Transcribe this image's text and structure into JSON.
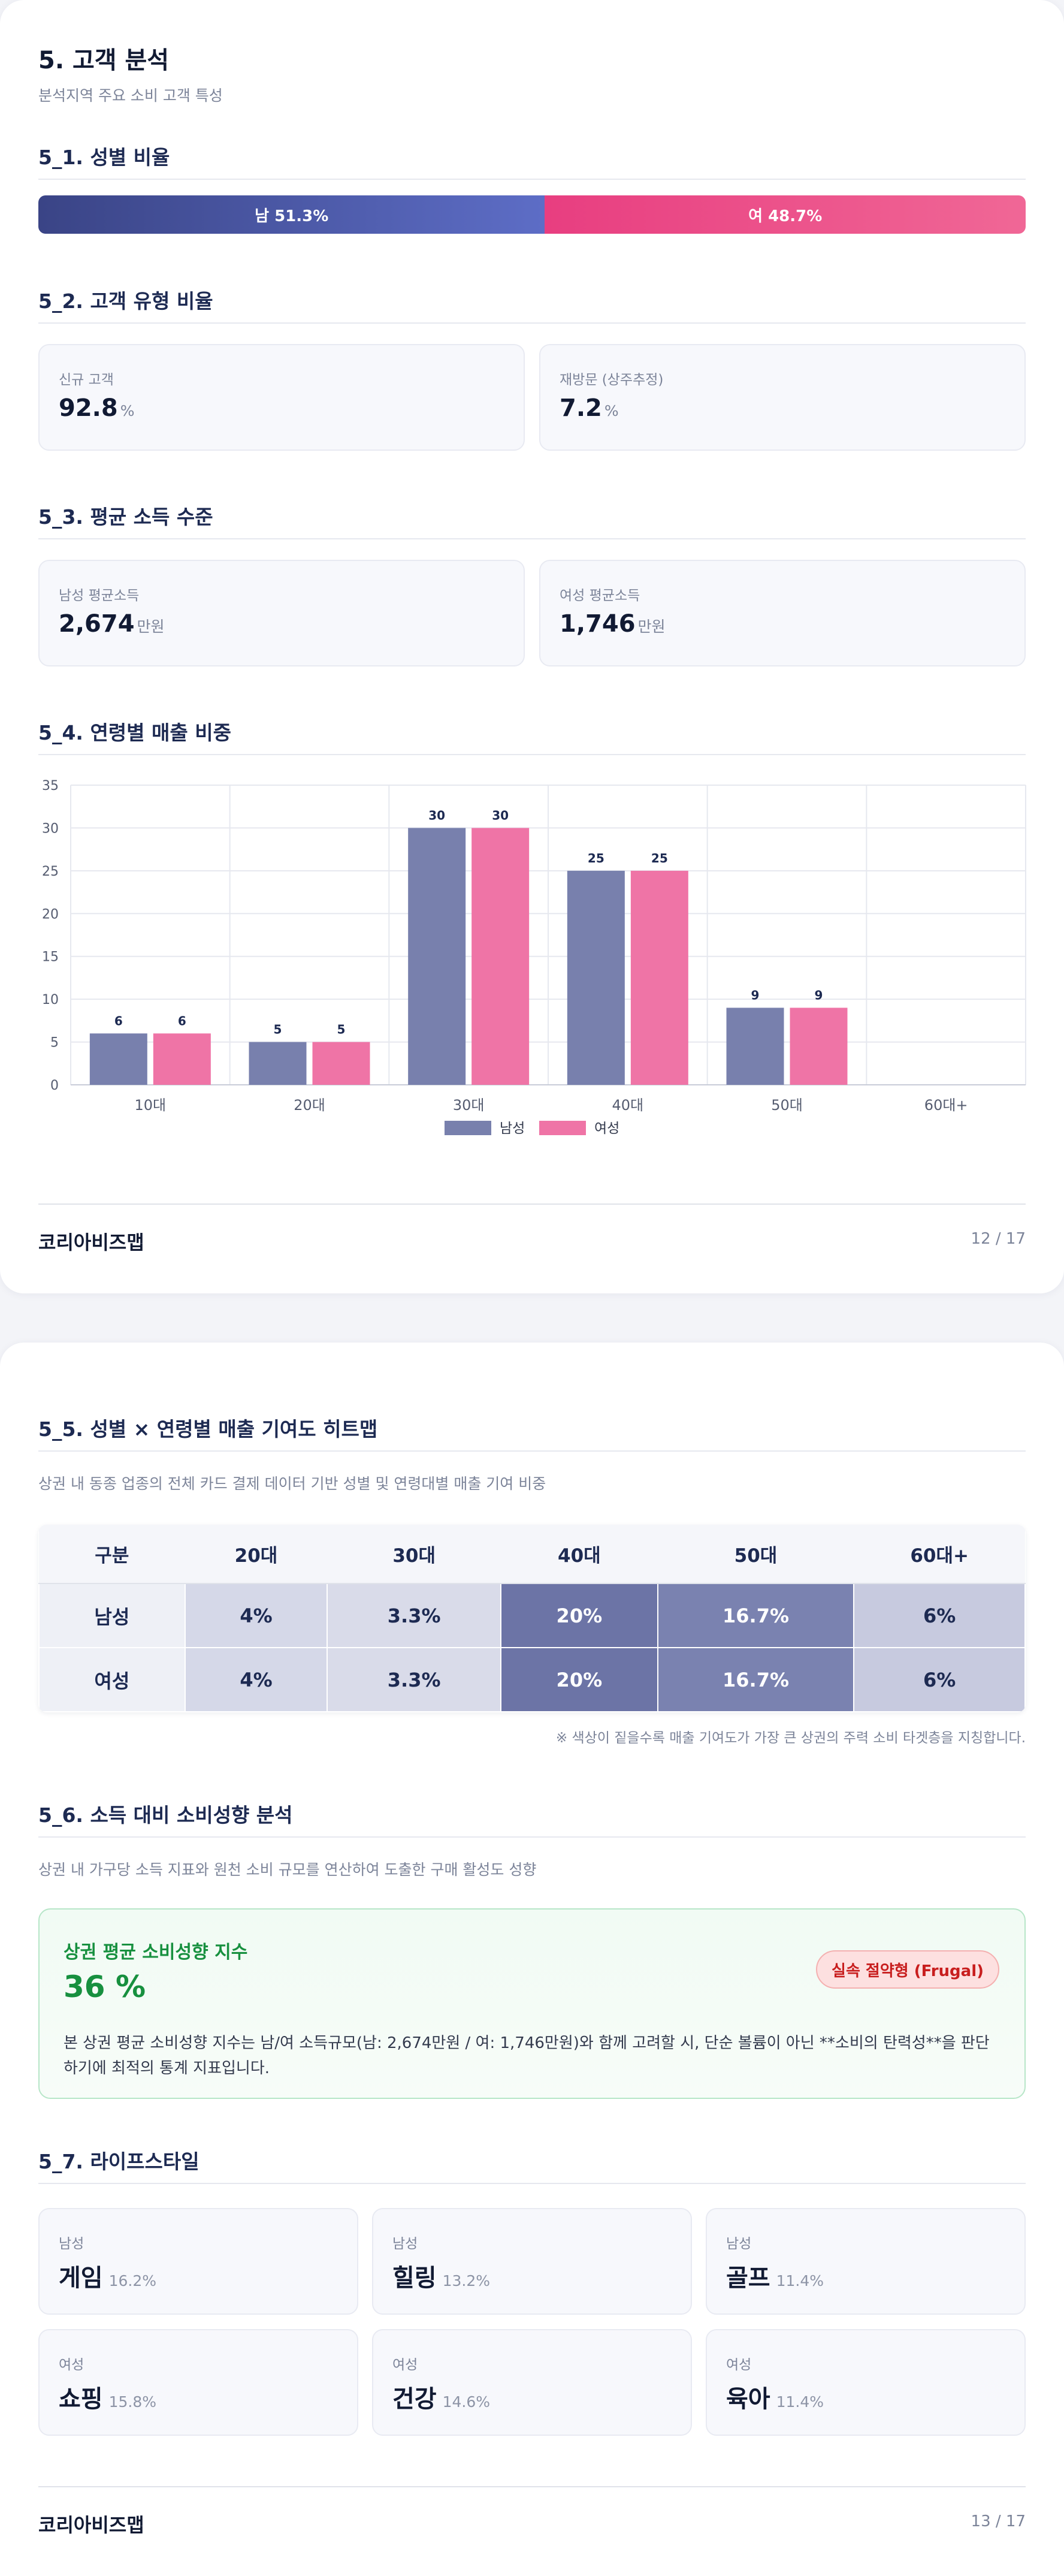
{
  "page1": {
    "title": "5. 고객 분석",
    "subtitle": "분석지역 주요 소비 고객 특성",
    "gender": {
      "heading": "5_1. 성별 비율",
      "male_label": "남 51.3%",
      "female_label": "여 48.7%",
      "male_pct": 51.3,
      "female_pct": 48.7
    },
    "customer_type": {
      "heading": "5_2. 고객 유형 비율",
      "new_label": "신규 고객",
      "new_value": "92.8",
      "new_unit": "%",
      "return_label": "재방문 (상주추정)",
      "return_value": "7.2",
      "return_unit": "%"
    },
    "income": {
      "heading": "5_3. 평균 소득 수준",
      "male_label": "남성 평균소득",
      "male_value": "2,674",
      "male_unit": "만원",
      "female_label": "여성 평균소득",
      "female_value": "1,746",
      "female_unit": "만원"
    },
    "age_sales": {
      "heading": "5_4. 연령별 매출 비중"
    },
    "footer": {
      "brand": "코리아비즈맵",
      "page": "12 / 17"
    }
  },
  "chart_data": {
    "type": "bar",
    "categories": [
      "10대",
      "20대",
      "30대",
      "40대",
      "50대",
      "60대+"
    ],
    "series": [
      {
        "name": "남성",
        "values": [
          6,
          5,
          30,
          25,
          9,
          0
        ],
        "color": "#7880ad"
      },
      {
        "name": "여성",
        "values": [
          6,
          5,
          30,
          25,
          9,
          0
        ],
        "color": "#ef74a6"
      }
    ],
    "ylim": [
      0,
      35
    ],
    "yticks": [
      0,
      5,
      10,
      15,
      20,
      25,
      30,
      35
    ],
    "grid": true,
    "legend": "bottom-center",
    "data_labels": [
      "6",
      "6",
      "5",
      "5",
      "30",
      "30",
      "25",
      "25",
      "9",
      "9"
    ]
  },
  "page2": {
    "heatmap": {
      "heading": "5_5. 성별 × 연령별 매출 기여도 히트맵",
      "description": "상권 내 동종 업종의 전체 카드 결제 데이터 기반 성별 및 연령대별 매출 기여 비중",
      "columns": [
        "구분",
        "20대",
        "30대",
        "40대",
        "50대",
        "60대+"
      ],
      "rows": [
        {
          "label": "남성",
          "cells": [
            "4%",
            "3.3%",
            "20%",
            "16.7%",
            "6%"
          ]
        },
        {
          "label": "여성",
          "cells": [
            "4%",
            "3.3%",
            "20%",
            "16.7%",
            "6%"
          ]
        }
      ],
      "cell_colors": [
        "#d5d8e8",
        "#d9dbe9",
        "#6c74a6",
        "#7a82b0",
        "#c7cadf"
      ],
      "note": "※ 색상이 짙을수록 매출 기여도가 가장 큰 상권의 주력 소비 타겟층을 지칭합니다."
    },
    "propensity": {
      "heading": "5_6. 소득 대비 소비성향 분석",
      "description": "상권 내 가구당 소득 지표와 원천 소비 규모를 연산하여 도출한 구매 활성도 성향",
      "index_title": "상권 평균 소비성향 지수",
      "index_value": "36 %",
      "badge": "실속 절약형 (Frugal)",
      "text": "본 상권 평균 소비성향 지수는 남/여 소득규모(남: 2,674만원 / 여: 1,746만원)와 함께 고려할 시, 단순 볼륨이 아닌 **소비의 탄력성**을 판단하기에 최적의 통계 지표입니다."
    },
    "lifestyle": {
      "heading": "5_7. 라이프스타일",
      "items": [
        {
          "gender": "남성",
          "name": "게임",
          "pct": "16.2%"
        },
        {
          "gender": "남성",
          "name": "힐링",
          "pct": "13.2%"
        },
        {
          "gender": "남성",
          "name": "골프",
          "pct": "11.4%"
        },
        {
          "gender": "여성",
          "name": "쇼핑",
          "pct": "15.8%"
        },
        {
          "gender": "여성",
          "name": "건강",
          "pct": "14.6%"
        },
        {
          "gender": "여성",
          "name": "육아",
          "pct": "11.4%"
        }
      ]
    },
    "footer": {
      "brand": "코리아비즈맵",
      "page": "13 / 17"
    }
  }
}
